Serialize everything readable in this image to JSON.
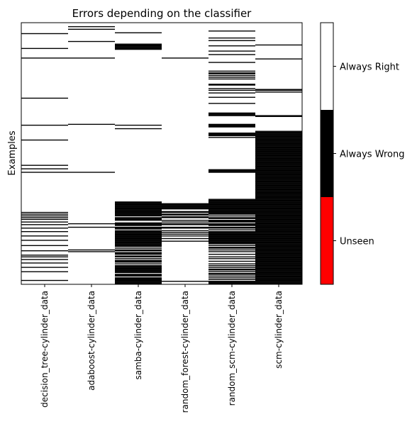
{
  "chart_data": {
    "type": "heatmap",
    "title": "Errors depending on the classifier",
    "ylabel": "Examples",
    "xlabel": "",
    "categories": [
      "decision_tree-cylinder_data",
      "adaboost-cylinder_data",
      "samba-cylinder_data",
      "random_forest-cylinder_data",
      "random_scm-cylinder_data",
      "scm-cylinder_data"
    ],
    "n_examples": 300,
    "value_meaning": {
      "-1": "Unseen",
      "0": "Always Wrong",
      "1": "Always Right"
    },
    "colorbar": {
      "labels": [
        "Unseen",
        "Always Wrong",
        "Always Right"
      ],
      "colors": [
        "#ff0000",
        "#000000",
        "#ffffff"
      ]
    },
    "series": [
      {
        "name": "decision_tree-cylinder_data",
        "wrong_examples": [
          12,
          29,
          40,
          86,
          117,
          134,
          163,
          167,
          171,
          217,
          219,
          221,
          223,
          225,
          228,
          231,
          235,
          239,
          244,
          249,
          255,
          261,
          266,
          268,
          271,
          275,
          280,
          285,
          295
        ]
      },
      {
        "name": "adaboost-cylinder_data",
        "wrong_examples": [
          4,
          7,
          21,
          40,
          116,
          171,
          230,
          234,
          260,
          262
        ]
      },
      {
        "name": "samba-cylinder_data",
        "wrong_examples": [
          11,
          24,
          25,
          26,
          27,
          28,
          29,
          30,
          117,
          121,
          205,
          206,
          207,
          208,
          209,
          210,
          211,
          212,
          213,
          214,
          215,
          216,
          217,
          218,
          219,
          220,
          221,
          223,
          224,
          225,
          226,
          229,
          230,
          231,
          232,
          234,
          235,
          236,
          238,
          239,
          240,
          241,
          242,
          243,
          244,
          245,
          246,
          247,
          248,
          249,
          250,
          251,
          252,
          253,
          254,
          255,
          256,
          258,
          260,
          261,
          263,
          264,
          265,
          267,
          268,
          270,
          272,
          273,
          274,
          276,
          278,
          279,
          280,
          281,
          282,
          283,
          284,
          285,
          286,
          288,
          289,
          290,
          292,
          293,
          294,
          295,
          296,
          297,
          298,
          299
        ]
      },
      {
        "name": "random_forest-cylinder_data",
        "wrong_examples": [
          40,
          207,
          208,
          209,
          210,
          211,
          212,
          213,
          216,
          217,
          219,
          220,
          222,
          223,
          226,
          228,
          230,
          231,
          234,
          235,
          238,
          240,
          242,
          244,
          247,
          250,
          296
        ]
      },
      {
        "name": "random_scm-cylinder_data",
        "wrong_examples": [
          9,
          17,
          20,
          26,
          32,
          36,
          45,
          55,
          57,
          58,
          60,
          62,
          64,
          70,
          71,
          75,
          77,
          80,
          85,
          92,
          103,
          104,
          105,
          106,
          116,
          117,
          118,
          119,
          126,
          127,
          128,
          129,
          131,
          168,
          169,
          170,
          171,
          202,
          203,
          204,
          205,
          206,
          207,
          208,
          209,
          210,
          211,
          212,
          213,
          214,
          215,
          216,
          217,
          218,
          219,
          221,
          223,
          224,
          226,
          227,
          228,
          230,
          231,
          232,
          234,
          235,
          237,
          239,
          240,
          241,
          242,
          243,
          244,
          245,
          246,
          247,
          248,
          249,
          250,
          251,
          252,
          253,
          255,
          257,
          258,
          260,
          262,
          265,
          268,
          270,
          273,
          276,
          278,
          280,
          282,
          283,
          285,
          287,
          288,
          290,
          292,
          294,
          296,
          297,
          298,
          299
        ]
      },
      {
        "name": "scm-cylinder_data",
        "wrong_examples": [
          25,
          41,
          76,
          77,
          79,
          106,
          107,
          124,
          125,
          126,
          127,
          128,
          129,
          130,
          131,
          132,
          133,
          134,
          135,
          136,
          137,
          138,
          139,
          140,
          141,
          142,
          143,
          144,
          145,
          146,
          147,
          148,
          149,
          150,
          151,
          152,
          153,
          154,
          155,
          156,
          157,
          158,
          159,
          160,
          161,
          162,
          163,
          164,
          165,
          166,
          167,
          168,
          169,
          170,
          171,
          172,
          173,
          174,
          175,
          176,
          177,
          178,
          179,
          180,
          181,
          182,
          183,
          184,
          185,
          186,
          187,
          188,
          189,
          190,
          191,
          192,
          193,
          194,
          195,
          196,
          197,
          198,
          199,
          200,
          201,
          202,
          203,
          204,
          205,
          206,
          207,
          208,
          209,
          210,
          211,
          212,
          213,
          214,
          215,
          216,
          217,
          218,
          219,
          220,
          221,
          222,
          223,
          224,
          225,
          226,
          227,
          228,
          229,
          230,
          231,
          232,
          233,
          234,
          235,
          236,
          237,
          238,
          239,
          240,
          241,
          242,
          243,
          244,
          245,
          246,
          247,
          248,
          249,
          250,
          251,
          252,
          253,
          254,
          255,
          256,
          257,
          258,
          259,
          260,
          261,
          262,
          263,
          264,
          265,
          266,
          267,
          268,
          269,
          270,
          271,
          272,
          273,
          274,
          275,
          276,
          277,
          278,
          279,
          280,
          281,
          282,
          283,
          284,
          285,
          286,
          287,
          288,
          289,
          290,
          291,
          292,
          293,
          294,
          295,
          296,
          297,
          298,
          299
        ]
      }
    ]
  }
}
